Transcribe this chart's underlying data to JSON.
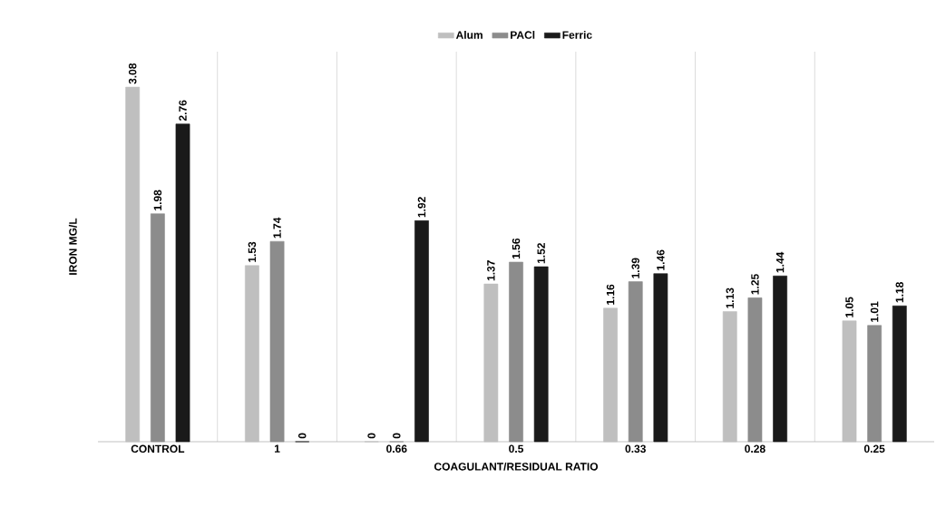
{
  "chart_data": {
    "type": "bar",
    "xlabel": "COAGULANT/RESIDUAL RATIO",
    "ylabel": "IRON MG/L",
    "categories": [
      "CONTROL",
      "1",
      "0.66",
      "0.5",
      "0.33",
      "0.28",
      "0.25"
    ],
    "series": [
      {
        "name": "Alum",
        "color": "#bfbfbf",
        "values": [
          3.08,
          1.53,
          0,
          1.37,
          1.16,
          1.13,
          1.05
        ]
      },
      {
        "name": "PACl",
        "color": "#8c8c8c",
        "values": [
          1.98,
          1.74,
          0,
          1.56,
          1.39,
          1.25,
          1.01
        ]
      },
      {
        "name": "Ferric",
        "color": "#1a1a1a",
        "values": [
          2.76,
          0,
          1.92,
          1.52,
          1.46,
          1.44,
          1.18
        ]
      }
    ],
    "data_labels": true,
    "grid": "x",
    "legend": "top"
  }
}
